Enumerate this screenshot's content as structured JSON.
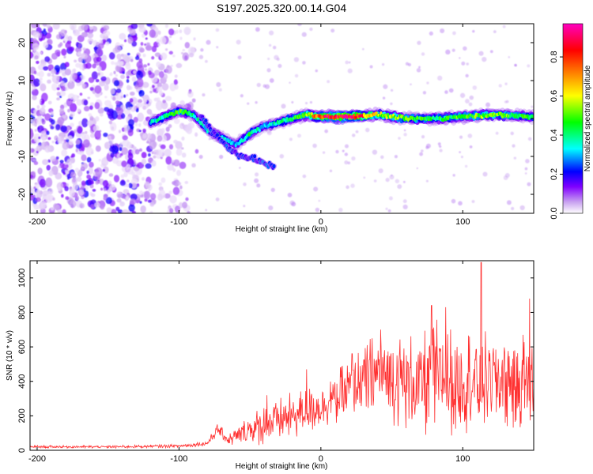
{
  "chart_data": [
    {
      "type": "heatmap",
      "title": "S197.2025.320.00.14.G04",
      "xlabel": "Height of straight line (km)",
      "ylabel": "Frequency (Hz)",
      "xlim": [
        -205,
        150
      ],
      "ylim": [
        -25,
        25
      ],
      "x_ticks": [
        -200,
        -100,
        0,
        100
      ],
      "y_ticks": [
        -20,
        -10,
        0,
        10,
        20
      ],
      "colorbar": {
        "label": "Normalized spectral amplitude",
        "range": [
          0.0,
          0.97
        ],
        "ticks": [
          0.0,
          0.2,
          0.4,
          0.6,
          0.8
        ],
        "tick_labels": [
          "0.0",
          "0.2",
          "0.4",
          "0.6",
          "0.8"
        ],
        "colors": [
          "#ffffff",
          "#c8a0f0",
          "#8000ff",
          "#0000ff",
          "#00ffff",
          "#00ff00",
          "#ffff00",
          "#ff8000",
          "#ff0000",
          "#ff00c0"
        ]
      },
      "ridge": {
        "x": [
          -120,
          -100,
          -90,
          -80,
          -70,
          -60,
          -50,
          -40,
          -30,
          -20,
          -10,
          0,
          20,
          40,
          60,
          80,
          100,
          120,
          150
        ],
        "frequency": [
          -1,
          2,
          1,
          -3,
          -5,
          -7,
          -4,
          -2,
          -1,
          0,
          1,
          0.5,
          0.5,
          1,
          0,
          0,
          0.5,
          1,
          0.5
        ],
        "amplitude": [
          0.35,
          0.5,
          0.4,
          0.35,
          0.4,
          0.3,
          0.45,
          0.3,
          0.4,
          0.45,
          0.55,
          0.85,
          0.97,
          0.6,
          0.5,
          0.45,
          0.5,
          0.55,
          0.45
        ]
      },
      "branch": {
        "x": [
          -85,
          -75,
          -65,
          -55,
          -45,
          -38,
          -33
        ],
        "frequency": [
          1,
          -4,
          -8,
          -10,
          -11,
          -12,
          -13
        ]
      }
    },
    {
      "type": "line",
      "xlabel": "Height of straight line (km)",
      "ylabel": "SNR (10 * v/v)",
      "xlim": [
        -205,
        150
      ],
      "ylim": [
        0,
        1100
      ],
      "x_ticks": [
        -200,
        -100,
        0,
        100
      ],
      "y_ticks": [
        0,
        200,
        400,
        600,
        800,
        1000
      ],
      "series": [
        {
          "name": "SNR",
          "color": "#ff3030",
          "envelope_x": [
            -205,
            -150,
            -100,
            -80,
            -73,
            -65,
            -50,
            -40,
            -20,
            0,
            20,
            40,
            50,
            70,
            80,
            90,
            100,
            113,
            120,
            140,
            150
          ],
          "envelope_mean": [
            20,
            20,
            25,
            40,
            120,
            60,
            120,
            150,
            200,
            260,
            350,
            450,
            420,
            380,
            420,
            400,
            420,
            400,
            420,
            400,
            400
          ],
          "envelope_spread": [
            8,
            8,
            10,
            15,
            40,
            35,
            100,
            120,
            140,
            140,
            180,
            250,
            280,
            300,
            360,
            320,
            320,
            300,
            280,
            300,
            300
          ],
          "peaks": [
            {
              "x": -73,
              "y": 150
            },
            {
              "x": -38,
              "y": 320
            },
            {
              "x": -10,
              "y": 470
            },
            {
              "x": 22,
              "y": 560
            },
            {
              "x": 42,
              "y": 700
            },
            {
              "x": 78,
              "y": 840
            },
            {
              "x": 88,
              "y": 830
            },
            {
              "x": 113,
              "y": 1090
            },
            {
              "x": 147,
              "y": 880
            }
          ]
        }
      ]
    }
  ]
}
